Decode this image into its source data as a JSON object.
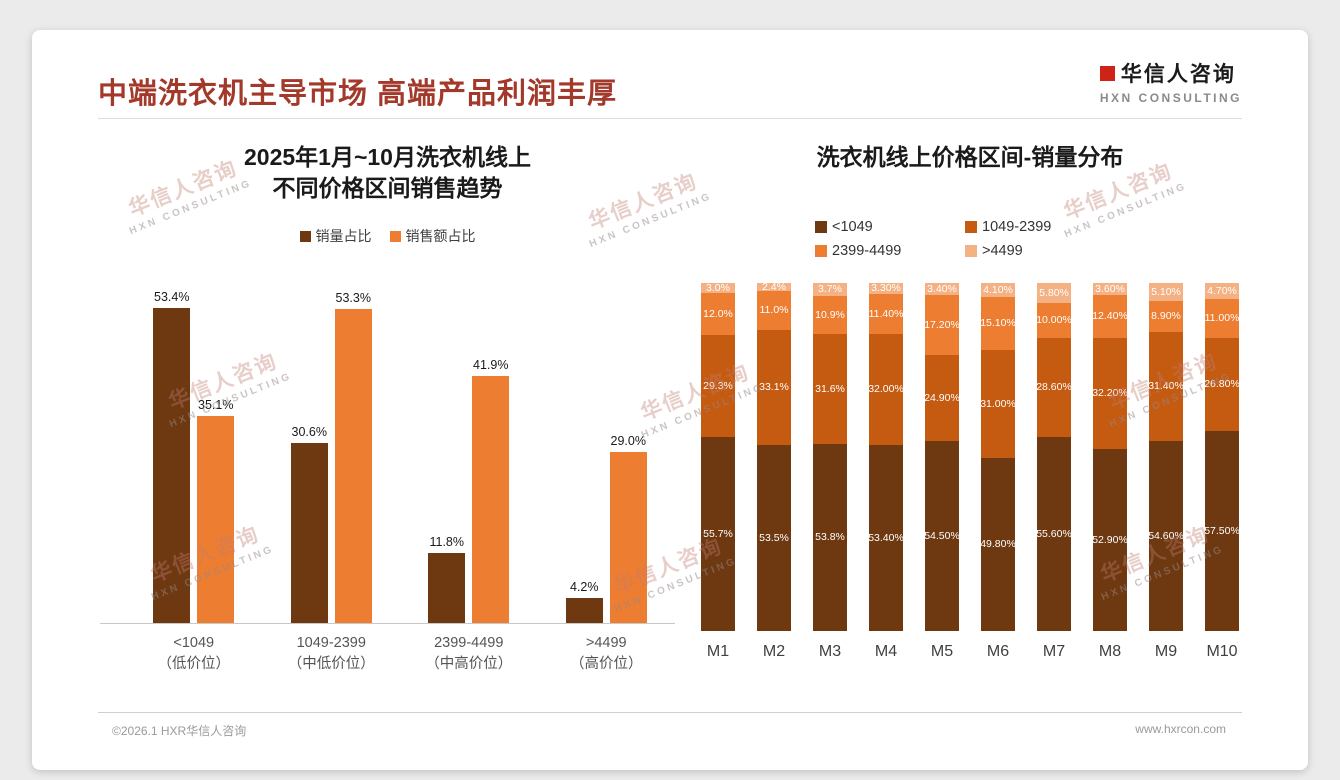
{
  "page": {
    "title": "中端洗衣机主导市场 高端产品利润丰厚",
    "logo": {
      "name": "华信人咨询",
      "sub": "HXN CONSULTING"
    },
    "watermark": {
      "line1": "华信人咨询",
      "line2": "HXN CONSULTING"
    },
    "footer": {
      "left": "©2026.1 HXR华信人咨询",
      "right": "www.hxrcon.com"
    }
  },
  "colors": {
    "accent_title": "#A3392B",
    "logo_red": "#CE2418",
    "dark_brown": "#6E3811",
    "burnt_orange": "#C55A11",
    "orange": "#ED7D31",
    "light_orange": "#F4B183"
  },
  "chart_data": [
    {
      "type": "bar",
      "title": "2025年1月~10月洗衣机线上 不同价格区间销售趋势",
      "title_lines": [
        "2025年1月~10月洗衣机线上",
        "不同价格区间销售趋势"
      ],
      "categories": [
        "<1049",
        "1049-2399",
        "2399-4499",
        ">4499"
      ],
      "category_sublabels": [
        "（低价位）",
        "（中低价位）",
        "（中高价位）",
        "（高价位）"
      ],
      "series": [
        {
          "name": "销量占比",
          "color": "#6E3811",
          "values": [
            53.4,
            30.6,
            11.8,
            4.2
          ],
          "labels": [
            "53.4%",
            "30.6%",
            "11.8%",
            "4.2%"
          ]
        },
        {
          "name": "销售额占比",
          "color": "#ED7D31",
          "values": [
            35.1,
            53.3,
            41.9,
            29.0
          ],
          "labels": [
            "35.1%",
            "53.3%",
            "41.9%",
            "29.0%"
          ]
        }
      ],
      "ylim": [
        0,
        56
      ],
      "grid": false,
      "legend_position": "top"
    },
    {
      "type": "stacked-bar",
      "title": "洗衣机线上价格区间-销量分布",
      "categories": [
        "M1",
        "M2",
        "M3",
        "M4",
        "M5",
        "M6",
        "M7",
        "M8",
        "M9",
        "M10"
      ],
      "series": [
        {
          "name": "<1049",
          "color": "#6E3811",
          "values": [
            55.7,
            53.5,
            53.8,
            53.4,
            54.5,
            49.8,
            55.6,
            52.9,
            54.6,
            57.5
          ],
          "labels": [
            "55.7%",
            "53.5%",
            "53.8%",
            "53.40%",
            "54.50%",
            "49.80%",
            "55.60%",
            "52.90%",
            "54.60%",
            "57.50%"
          ]
        },
        {
          "name": "1049-2399",
          "color": "#C55A11",
          "values": [
            29.3,
            33.1,
            31.6,
            32.0,
            24.9,
            31.0,
            28.6,
            32.2,
            31.4,
            26.8
          ],
          "labels": [
            "29.3%",
            "33.1%",
            "31.6%",
            "32.00%",
            "24.90%",
            "31.00%",
            "28.60%",
            "32.20%",
            "31.40%",
            "26.80%"
          ]
        },
        {
          "name": "2399-4499",
          "color": "#ED7D31",
          "values": [
            12.0,
            11.0,
            10.9,
            11.4,
            17.2,
            15.1,
            10.0,
            12.4,
            8.9,
            11.0
          ],
          "labels": [
            "12.0%",
            "11.0%",
            "10.9%",
            "11.40%",
            "17.20%",
            "15.10%",
            "10.00%",
            "12.40%",
            "8.90%",
            "11.00%"
          ]
        },
        {
          "name": ">4499",
          "color": "#F4B183",
          "values": [
            3.0,
            2.4,
            3.7,
            3.3,
            3.4,
            4.1,
            5.8,
            3.6,
            5.1,
            4.7
          ],
          "labels": [
            "3.0%",
            "2.4%",
            "3.7%",
            "3.30%",
            "3.40%",
            "4.10%",
            "5.80%",
            "3.60%",
            "5.10%",
            "4.70%"
          ]
        }
      ],
      "ylim": [
        0,
        100
      ],
      "grid": false,
      "legend_position": "top"
    }
  ]
}
